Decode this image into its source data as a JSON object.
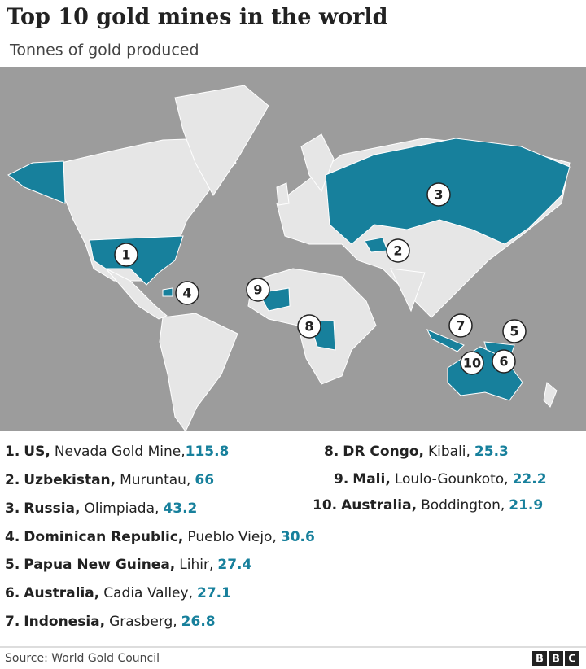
{
  "header": {
    "title": "Top 10 gold mines in the world",
    "subtitle": "Tonnes of gold produced"
  },
  "markers": [
    1,
    2,
    3,
    4,
    5,
    6,
    7,
    8,
    9,
    10
  ],
  "mines": [
    {
      "rank": "1.",
      "country": "US,",
      "mine": "Nevada Gold Mine,",
      "tonnes": 115.8
    },
    {
      "rank": "2.",
      "country": "Uzbekistan,",
      "mine": "Muruntau,",
      "tonnes": 66
    },
    {
      "rank": "3.",
      "country": "Russia,",
      "mine": "Olimpiada,",
      "tonnes": 43.2
    },
    {
      "rank": "4.",
      "country": "Dominican Republic,",
      "mine": "Pueblo Viejo,",
      "tonnes": 30.6
    },
    {
      "rank": "5.",
      "country": "Papua New Guinea,",
      "mine": "Lihir,",
      "tonnes": 27.4
    },
    {
      "rank": "6.",
      "country": "Australia,",
      "mine": "Cadia Valley,",
      "tonnes": 27.1
    },
    {
      "rank": "7.",
      "country": "Indonesia,",
      "mine": "Grasberg,",
      "tonnes": 26.8
    },
    {
      "rank": "8.",
      "country": "DR Congo,",
      "mine": "Kibali,",
      "tonnes": 25.3
    },
    {
      "rank": "9.",
      "country": "Mali,",
      "mine": "Loulo-Gounkoto,",
      "tonnes": 22.2
    },
    {
      "rank": "10.",
      "country": "Australia,",
      "mine": "Boddington,",
      "tonnes": 21.9
    }
  ],
  "footer": {
    "source": "Source: World Gold Council",
    "logo": [
      "B",
      "B",
      "C"
    ]
  }
}
